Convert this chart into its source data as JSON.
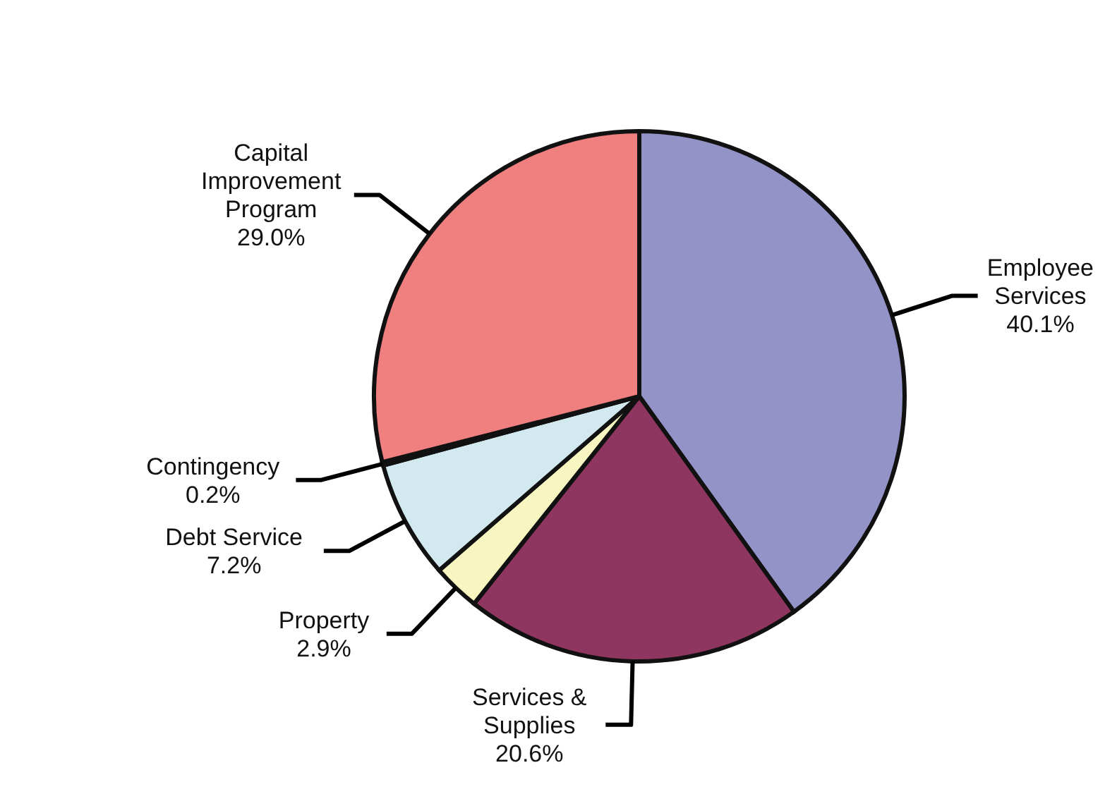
{
  "chart_data": {
    "type": "pie",
    "categories": [
      "Employee Services",
      "Services & Supplies",
      "Property",
      "Debt Service",
      "Contingency",
      "Capital Improvement Program"
    ],
    "values": [
      40.1,
      20.6,
      2.9,
      7.2,
      0.2,
      29.0
    ],
    "value_labels": [
      "40.1%",
      "20.6%",
      "2.9%",
      "7.2%",
      "0.2%",
      "29.0%"
    ],
    "colors": [
      "#9393c8",
      "#8e3660",
      "#f7f5c0",
      "#d2e9ef",
      "#222222",
      "#f08080"
    ],
    "legend": false
  }
}
